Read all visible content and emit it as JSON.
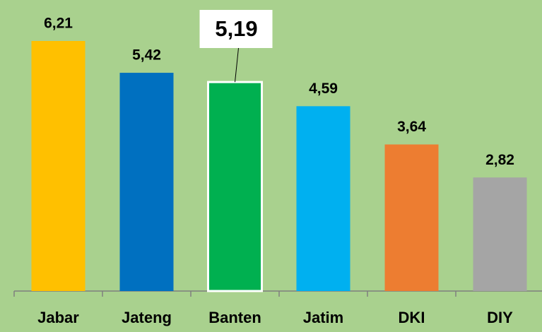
{
  "chart_data": {
    "type": "bar",
    "categories": [
      "Jabar",
      "Jateng",
      "Banten",
      "Jatim",
      "DKI",
      "DIY"
    ],
    "values": [
      6.21,
      5.42,
      5.19,
      4.59,
      3.64,
      2.82
    ],
    "value_labels": [
      "6,21",
      "5,42",
      "5,19",
      "4,59",
      "3,64",
      "2,82"
    ],
    "colors": [
      "#ffc000",
      "#0070c0",
      "#00b050",
      "#00b0f0",
      "#ed7d31",
      "#a5a5a5"
    ],
    "highlight": 2
  }
}
